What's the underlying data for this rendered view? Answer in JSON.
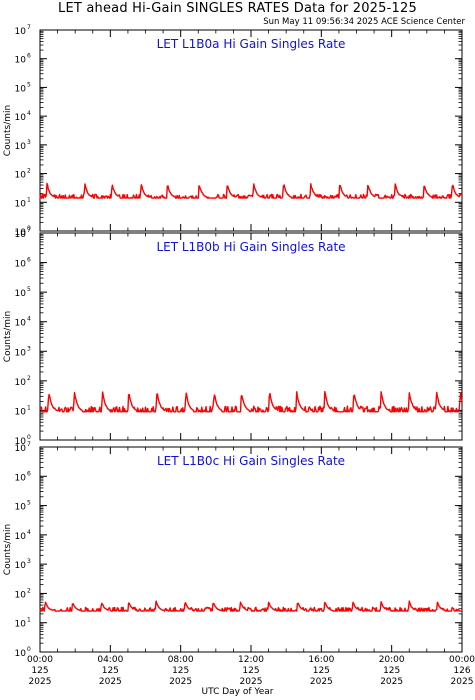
{
  "header": {
    "title": "LET ahead Hi-Gain SINGLES RATES Data for 2025-125",
    "timestamp": "Sun May 11 09:56:34 2025 ACE Science Center"
  },
  "chart_data": [
    {
      "type": "line",
      "title": "LET L1B0a Hi Gain Singles Rate",
      "ylabel": "Counts/min",
      "yscale": "log",
      "ylim": [
        1,
        10000000
      ],
      "x_range": [
        "2025-125 00:00",
        "2025-126 00:00"
      ],
      "series": [
        {
          "color": "#ff0000",
          "baseline": 14,
          "noise_factor": 1.35,
          "spike_peak": 50,
          "spike_hours": [
            0.4,
            2.55,
            4.1,
            5.75,
            7.25,
            9.05,
            10.65,
            12.15,
            13.85,
            15.4,
            17.05,
            18.65,
            20.2,
            21.85,
            23.45
          ]
        }
      ]
    },
    {
      "type": "line",
      "title": "LET L1B0b Hi Gain Singles Rate",
      "ylabel": "Counts/min",
      "yscale": "log",
      "ylim": [
        1,
        10000000
      ],
      "x_range": [
        "2025-125 00:00",
        "2025-126 00:00"
      ],
      "series": [
        {
          "color": "#ff0000",
          "baseline": 9,
          "noise_factor": 1.55,
          "spike_peak": 50,
          "spike_hours": [
            0.5,
            1.95,
            3.55,
            5.05,
            6.65,
            8.3,
            9.9,
            11.45,
            13.05,
            14.6,
            16.2,
            17.85,
            19.4,
            21.0,
            22.55,
            23.9
          ]
        }
      ]
    },
    {
      "type": "line",
      "title": "LET L1B0c Hi Gain Singles Rate",
      "ylabel": "Counts/min",
      "yscale": "log",
      "ylim": [
        1,
        10000000
      ],
      "x_range": [
        "2025-125 00:00",
        "2025-126 00:00"
      ],
      "series": [
        {
          "color": "#ff0000",
          "baseline": 25,
          "noise_factor": 1.35,
          "spike_peak": 55,
          "spike_hours": [
            0.3,
            1.85,
            3.5,
            5.05,
            6.6,
            8.25,
            9.85,
            11.4,
            13.0,
            14.65,
            16.2,
            17.8,
            19.4,
            21.0,
            22.6
          ]
        }
      ]
    }
  ],
  "x_axis": {
    "label": "UTC Day of Year",
    "ticks": [
      {
        "time": "00:00",
        "day": "125",
        "year": "2025"
      },
      {
        "time": "04:00",
        "day": "125",
        "year": "2025"
      },
      {
        "time": "08:00",
        "day": "125",
        "year": "2025"
      },
      {
        "time": "12:00",
        "day": "125",
        "year": "2025"
      },
      {
        "time": "16:00",
        "day": "125",
        "year": "2025"
      },
      {
        "time": "20:00",
        "day": "125",
        "year": "2025"
      },
      {
        "time": "00:00",
        "day": "126",
        "year": "2025"
      }
    ]
  },
  "y_axis": {
    "ticks": [
      {
        "base": "10",
        "exp": "0"
      },
      {
        "base": "10",
        "exp": "1"
      },
      {
        "base": "10",
        "exp": "2"
      },
      {
        "base": "10",
        "exp": "3"
      },
      {
        "base": "10",
        "exp": "4"
      },
      {
        "base": "10",
        "exp": "5"
      },
      {
        "base": "10",
        "exp": "6"
      },
      {
        "base": "10",
        "exp": "7"
      }
    ]
  }
}
